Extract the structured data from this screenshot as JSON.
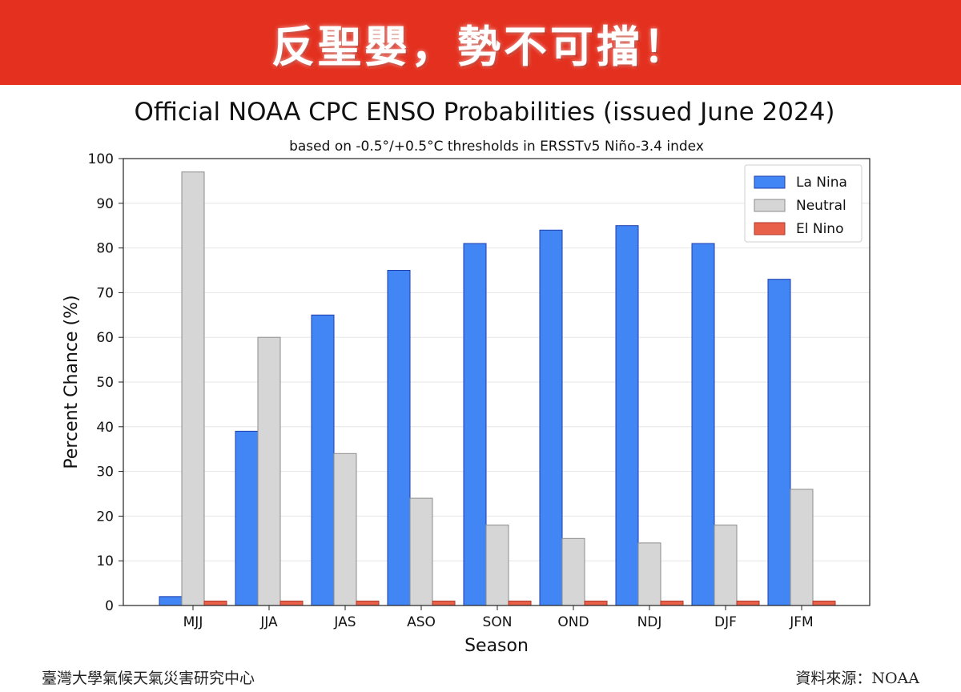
{
  "banner": {
    "text": "反聖嬰，勢不可擋！"
  },
  "footer": {
    "left": "臺灣大學氣候天氣災害研究中心",
    "right": "資料來源：NOAA"
  },
  "colors": {
    "banner_bg": "#e3301f",
    "la_nina": "#4285f4",
    "la_nina_edge": "#1f3fae",
    "neutral": "#d6d6d6",
    "neutral_edge": "#8c8c8c",
    "el_nino": "#e8604a",
    "el_nino_edge": "#b23a2a"
  },
  "chart_data": {
    "type": "bar",
    "title": "Official NOAA CPC ENSO Probabilities (issued June 2024)",
    "subtitle": "based on -0.5°/+0.5°C thresholds in ERSSTv5 Niño-3.4 index",
    "xlabel": "Season",
    "ylabel": "Percent Chance (%)",
    "ylim": [
      0,
      100
    ],
    "yticks": [
      "0",
      "10",
      "20",
      "30",
      "40",
      "50",
      "60",
      "70",
      "80",
      "90",
      "100"
    ],
    "grid": true,
    "legend_position": "top-right",
    "categories": [
      "MJJ",
      "JJA",
      "JAS",
      "ASO",
      "SON",
      "OND",
      "NDJ",
      "DJF",
      "JFM"
    ],
    "series": [
      {
        "name": "La Nina",
        "values": [
          2,
          39,
          65,
          75,
          81,
          84,
          85,
          81,
          73
        ]
      },
      {
        "name": "Neutral",
        "values": [
          97,
          60,
          34,
          24,
          18,
          15,
          14,
          18,
          26
        ]
      },
      {
        "name": "El Nino",
        "values": [
          1,
          1,
          1,
          1,
          1,
          1,
          1,
          1,
          1
        ]
      }
    ]
  }
}
